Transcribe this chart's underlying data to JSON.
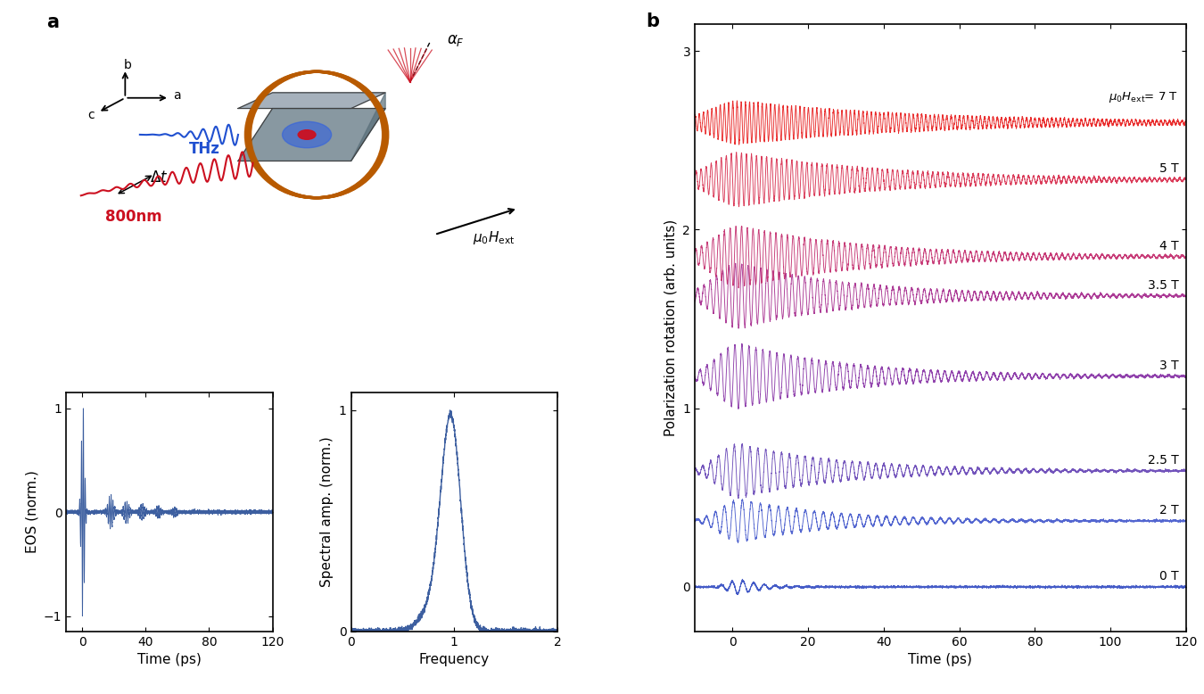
{
  "panel_a_label": "a",
  "panel_b_label": "b",
  "eos_ylabel": "EOS (norm.)",
  "eos_xlabel": "Time (ps)",
  "eos_xlim": [
    -10,
    120
  ],
  "eos_ylim": [
    -1.15,
    1.15
  ],
  "eos_yticks": [
    -1,
    0,
    1
  ],
  "eos_xticks": [
    0,
    40,
    80,
    120
  ],
  "spec_ylabel": "Spectral amp. (norm.)",
  "spec_xlabel": "Frequency",
  "spec_xlim": [
    0,
    2
  ],
  "spec_ylim": [
    0,
    1.08
  ],
  "spec_yticks": [
    0,
    1
  ],
  "spec_xticks": [
    0,
    1,
    2
  ],
  "b_ylabel": "Polarization rotation (arb. units)",
  "b_xlabel": "Time (ps)",
  "b_xlim": [
    -10,
    120
  ],
  "b_ylim": [
    -0.25,
    3.15
  ],
  "b_yticks": [
    0,
    1,
    2,
    3
  ],
  "b_xticks": [
    0,
    20,
    40,
    60,
    80,
    100,
    120
  ],
  "field_labels": [
    "0 T",
    "2 T",
    "2.5 T",
    "3 T",
    "3.5 T",
    "4 T",
    "5 T",
    "7 T"
  ],
  "field_values": [
    0,
    2,
    2.5,
    3,
    3.5,
    4,
    5,
    7
  ],
  "field_offsets": [
    0.0,
    0.37,
    0.65,
    1.18,
    1.63,
    1.85,
    2.28,
    2.6
  ],
  "field_amplitudes": [
    0.04,
    0.12,
    0.15,
    0.18,
    0.18,
    0.17,
    0.15,
    0.12
  ],
  "field_freqs": [
    0.35,
    0.42,
    0.48,
    0.54,
    0.6,
    0.66,
    0.75,
    0.9
  ],
  "field_decay": [
    6.0,
    25.0,
    28.0,
    30.0,
    32.0,
    35.0,
    40.0,
    50.0
  ],
  "field_rise": [
    3.0,
    5.0,
    5.5,
    6.0,
    6.5,
    7.0,
    7.5,
    8.0
  ],
  "colors_b": [
    "#3a52c4",
    "#4a5ece",
    "#6a4ab8",
    "#8a38a8",
    "#a83090",
    "#c43070",
    "#d83050",
    "#e82020"
  ],
  "eos_color": "#3d5fa0",
  "bg_color": "#ffffff",
  "mu0_label": "$\\mu_0 H_{\\rm ext}$= 7 T"
}
